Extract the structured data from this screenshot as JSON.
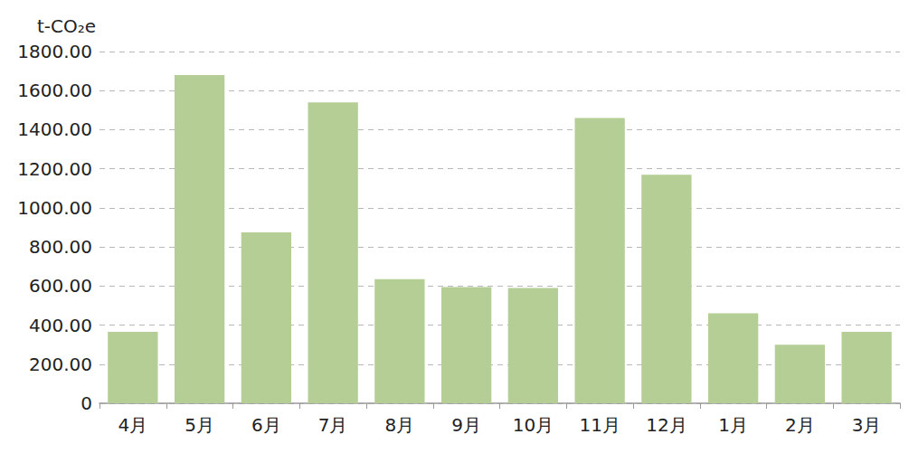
{
  "chart_data": {
    "type": "bar",
    "y_label": "t-CO₂e",
    "categories": [
      "4月",
      "5月",
      "6月",
      "7月",
      "8月",
      "9月",
      "10月",
      "11月",
      "12月",
      "1月",
      "2月",
      "3月"
    ],
    "values": [
      365,
      1680,
      875,
      1540,
      635,
      595,
      590,
      1460,
      1170,
      460,
      300,
      365
    ],
    "color": "#b5ce96",
    "ylim": [
      0,
      1800
    ],
    "yticks": [
      0,
      {
        "value": 200,
        "label": "200.00"
      },
      {
        "value": 400,
        "label": "400.00"
      },
      {
        "value": 600,
        "label": "600.00"
      },
      {
        "value": 800,
        "label": "800.00"
      },
      {
        "value": 1000,
        "label": "1000.00"
      },
      {
        "value": 1200,
        "label": "1200.00"
      },
      {
        "value": 1400,
        "label": "1400.00"
      },
      {
        "value": 1600,
        "label": "1600.00"
      },
      {
        "value": 1800,
        "label": "1800.00"
      }
    ],
    "grid": true
  }
}
